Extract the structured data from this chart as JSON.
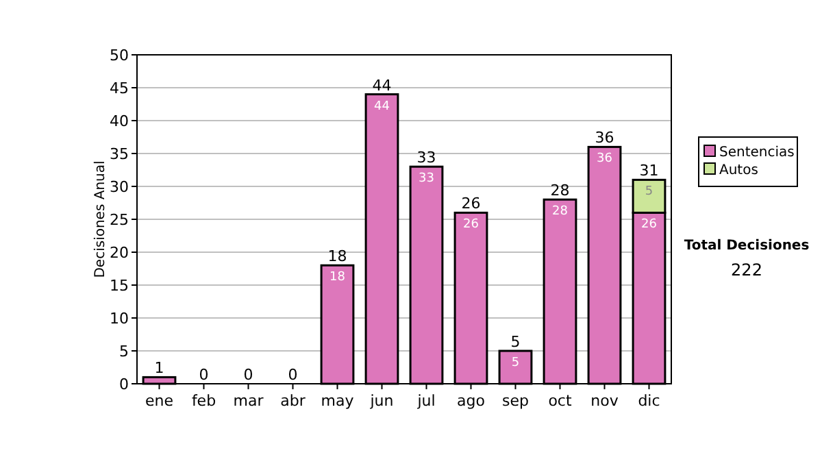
{
  "chart_data": {
    "type": "bar",
    "stacked": true,
    "ylabel": "Decisiones Anual",
    "categories": [
      "ene",
      "feb",
      "mar",
      "abr",
      "may",
      "jun",
      "jul",
      "ago",
      "sep",
      "oct",
      "nov",
      "dic"
    ],
    "series": [
      {
        "name": "Sentencias",
        "color": "#dd77bb",
        "values": [
          1,
          0,
          0,
          0,
          18,
          44,
          33,
          26,
          5,
          28,
          36,
          26
        ],
        "value_labels": [
          null,
          null,
          null,
          null,
          "18",
          "44",
          "33",
          "26",
          "5",
          "28",
          "36",
          "26"
        ]
      },
      {
        "name": "Autos",
        "color": "#cce699",
        "values": [
          0,
          0,
          0,
          0,
          0,
          0,
          0,
          0,
          0,
          0,
          0,
          5
        ],
        "value_labels": [
          null,
          null,
          null,
          null,
          null,
          null,
          null,
          null,
          null,
          null,
          null,
          "5"
        ]
      }
    ],
    "totals": [
      "1",
      "0",
      "0",
      "0",
      "18",
      "44",
      "33",
      "26",
      "5",
      "28",
      "36",
      "31"
    ],
    "ylim": [
      0,
      50
    ],
    "yticks": [
      0,
      5,
      10,
      15,
      20,
      25,
      30,
      35,
      40,
      45,
      50
    ],
    "grid": "y",
    "legend": "right",
    "annotations": [
      "Total Decisiones",
      "222"
    ]
  }
}
